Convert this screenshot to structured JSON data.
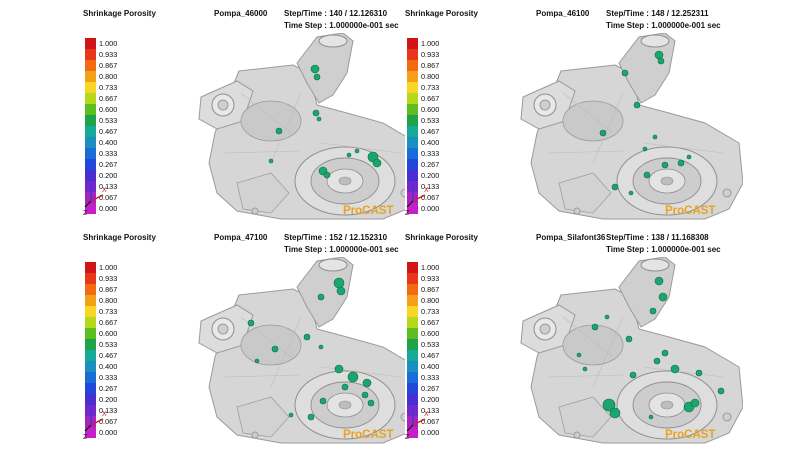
{
  "panels": [
    {
      "title": "Shrinkage Porosity",
      "name": "Pompa_46000",
      "step_time": "Step/Time : 140 / 12.126310",
      "time_step": "Time Step : 1.000000e-001 sec",
      "brand": "ProCAST"
    },
    {
      "title": "Shrinkage Porosity",
      "name": "Pompa_46100",
      "step_time": "Step/Time : 148 / 12.252311",
      "time_step": "Time Step : 1.000000e-001 sec",
      "brand": "ProCAST"
    },
    {
      "title": "Shrinkage Porosity",
      "name": "Pompa_47100",
      "step_time": "Step/Time : 152 / 12.152310",
      "time_step": "Time Step : 1.000000e-001 sec",
      "brand": "ProCAST"
    },
    {
      "title": "Shrinkage Porosity",
      "name": "Pompa_Silafont36",
      "step_time": "Step/Time : 138 / 11.168308",
      "time_step": "Time Step : 1.000000e-001 sec",
      "brand": "ProCAST"
    }
  ],
  "legend": {
    "ticks": [
      "1.000",
      "0.933",
      "0.867",
      "0.800",
      "0.733",
      "0.667",
      "0.600",
      "0.533",
      "0.467",
      "0.400",
      "0.333",
      "0.267",
      "0.200",
      "0.133",
      "0.067",
      "0.000"
    ],
    "colors": [
      "#d11414",
      "#e6371b",
      "#f26a12",
      "#f5a019",
      "#f7d626",
      "#b7d719",
      "#5cbf1f",
      "#1ea34b",
      "#16a995",
      "#1a8fc2",
      "#1c6cd8",
      "#2346db",
      "#4a2ed1",
      "#7a25c9",
      "#a623c2",
      "#c41fc6"
    ]
  },
  "axes": {
    "x_label": "X",
    "y_label": "Y",
    "z_label": "Z"
  },
  "colors": {
    "defect": "#1aa66e",
    "defect_dark": "#0e6b45",
    "part": "#d6d6d6",
    "brand": "#e6a325"
  }
}
